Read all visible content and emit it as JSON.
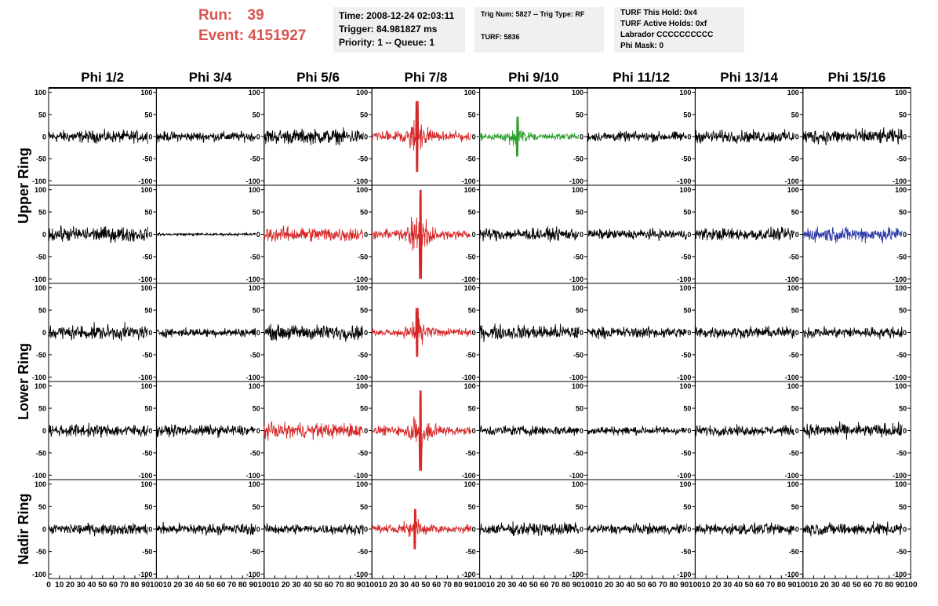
{
  "header": {
    "run_label": "Run:",
    "run_value": "39",
    "event_label": "Event:",
    "event_value": "4151927",
    "time_line": "Time: 2008-12-24 02:03:11",
    "trigger_line": "Trigger: 84.981827 ms",
    "priority_line": "Priority: 1 -- Queue: 1",
    "trig_line": "Trig Num: 5827 -- Trig Type: RF",
    "turf_line": "TURF: 5836",
    "turf_hold_line": "TURF This Hold: 0x4",
    "turf_active_line": "TURF Active Holds: 0xf",
    "labrador_line": "Labrador CCCCCCCCCC",
    "phi_mask_line": "Phi Mask: 0"
  },
  "colors": {
    "header_red": "#d9534f",
    "trace_black": "#000000",
    "trace_red": "#d62728",
    "trace_green": "#2ca02c",
    "trace_blue": "#2e3aa8",
    "info_box_bg": "#f0f0f0"
  },
  "chart_data": {
    "type": "line",
    "title": "",
    "columns": [
      "Phi 1/2",
      "Phi 3/4",
      "Phi 5/6",
      "Phi 7/8",
      "Phi 9/10",
      "Phi 11/12",
      "Phi 13/14",
      "Phi 15/16"
    ],
    "ring_labels": [
      {
        "label": "Upper Ring",
        "rows": [
          0,
          1
        ]
      },
      {
        "label": "Lower Ring",
        "rows": [
          2,
          3
        ]
      },
      {
        "label": "Nadir Ring",
        "rows": [
          4
        ]
      }
    ],
    "ylim": [
      -110,
      110
    ],
    "y_ticks": [
      -100,
      -50,
      0,
      50,
      100
    ],
    "xlim": [
      0,
      100
    ],
    "x_tick_labels": [
      "0",
      "10",
      "20",
      "30",
      "40",
      "50",
      "60",
      "70",
      "80",
      "90",
      "100"
    ],
    "samples_per_trace": 260,
    "grid": false,
    "traces": [
      [
        {
          "color": "black",
          "amplitude": 20,
          "envelope": "flat"
        },
        {
          "color": "black",
          "amplitude": 16,
          "envelope": "flat"
        },
        {
          "color": "black",
          "amplitude": 24,
          "envelope": "flat"
        },
        {
          "color": "red",
          "amplitude": 30,
          "envelope": "pulse",
          "peak_x": 42,
          "peak": 80
        },
        {
          "color": "green",
          "amplitude": 20,
          "envelope": "pulse",
          "peak_x": 35,
          "peak": 45
        },
        {
          "color": "black",
          "amplitude": 16,
          "envelope": "flat"
        },
        {
          "color": "black",
          "amplitude": 20,
          "envelope": "flat"
        },
        {
          "color": "black",
          "amplitude": 24,
          "envelope": "flat"
        }
      ],
      [
        {
          "color": "black",
          "amplitude": 24,
          "envelope": "flat"
        },
        {
          "color": "black",
          "amplitude": 4,
          "envelope": "flat"
        },
        {
          "color": "red",
          "amplitude": 24,
          "envelope": "flat"
        },
        {
          "color": "red",
          "amplitude": 30,
          "envelope": "pulse",
          "peak_x": 45,
          "peak": 100
        },
        {
          "color": "black",
          "amplitude": 20,
          "envelope": "flat"
        },
        {
          "color": "black",
          "amplitude": 16,
          "envelope": "flat"
        },
        {
          "color": "black",
          "amplitude": 20,
          "envelope": "flat"
        },
        {
          "color": "blue",
          "amplitude": 24,
          "envelope": "flat"
        }
      ],
      [
        {
          "color": "black",
          "amplitude": 24,
          "envelope": "flat"
        },
        {
          "color": "black",
          "amplitude": 14,
          "envelope": "flat"
        },
        {
          "color": "black",
          "amplitude": 24,
          "envelope": "flat"
        },
        {
          "color": "red",
          "amplitude": 22,
          "envelope": "pulse",
          "peak_x": 42,
          "peak": 55
        },
        {
          "color": "black",
          "amplitude": 24,
          "envelope": "flat"
        },
        {
          "color": "black",
          "amplitude": 18,
          "envelope": "flat"
        },
        {
          "color": "black",
          "amplitude": 18,
          "envelope": "flat"
        },
        {
          "color": "black",
          "amplitude": 18,
          "envelope": "flat"
        }
      ],
      [
        {
          "color": "black",
          "amplitude": 20,
          "envelope": "flat"
        },
        {
          "color": "black",
          "amplitude": 18,
          "envelope": "flat"
        },
        {
          "color": "red",
          "amplitude": 24,
          "envelope": "flat"
        },
        {
          "color": "red",
          "amplitude": 28,
          "envelope": "pulse",
          "peak_x": 45,
          "peak": 90
        },
        {
          "color": "black",
          "amplitude": 16,
          "envelope": "flat"
        },
        {
          "color": "black",
          "amplitude": 14,
          "envelope": "flat"
        },
        {
          "color": "black",
          "amplitude": 16,
          "envelope": "flat"
        },
        {
          "color": "black",
          "amplitude": 22,
          "envelope": "flat"
        }
      ],
      [
        {
          "color": "black",
          "amplitude": 18,
          "envelope": "flat"
        },
        {
          "color": "black",
          "amplitude": 18,
          "envelope": "flat"
        },
        {
          "color": "black",
          "amplitude": 16,
          "envelope": "flat"
        },
        {
          "color": "red",
          "amplitude": 24,
          "envelope": "pulse",
          "peak_x": 40,
          "peak": 45
        },
        {
          "color": "black",
          "amplitude": 20,
          "envelope": "flat"
        },
        {
          "color": "black",
          "amplitude": 16,
          "envelope": "flat"
        },
        {
          "color": "black",
          "amplitude": 18,
          "envelope": "flat"
        },
        {
          "color": "black",
          "amplitude": 20,
          "envelope": "flat"
        }
      ]
    ]
  }
}
